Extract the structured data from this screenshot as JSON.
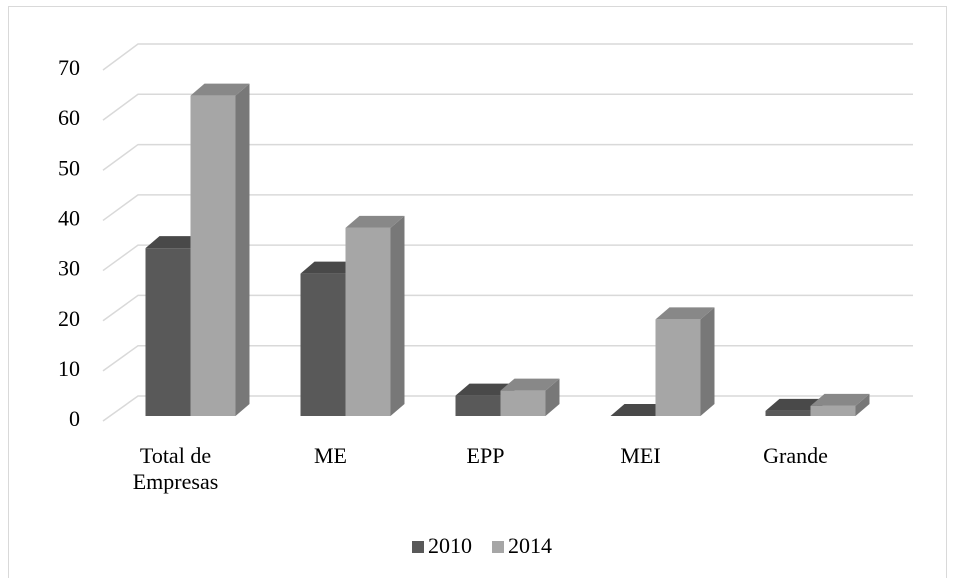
{
  "chart_data": {
    "type": "bar3d",
    "categories": [
      "Total de Empresas",
      "ME",
      "EPP",
      "MEI",
      "Grande"
    ],
    "series": [
      {
        "name": "2010",
        "color": "#595959",
        "values": [
          33,
          28,
          4,
          0,
          1
        ]
      },
      {
        "name": "2014",
        "color": "#a6a6a6",
        "values": [
          63,
          37,
          5,
          19,
          2
        ]
      }
    ],
    "ylim": [
      0,
      70
    ],
    "yticks": [
      0,
      10,
      20,
      30,
      40,
      50,
      60,
      70
    ],
    "grid": true,
    "legend": "bottom"
  }
}
